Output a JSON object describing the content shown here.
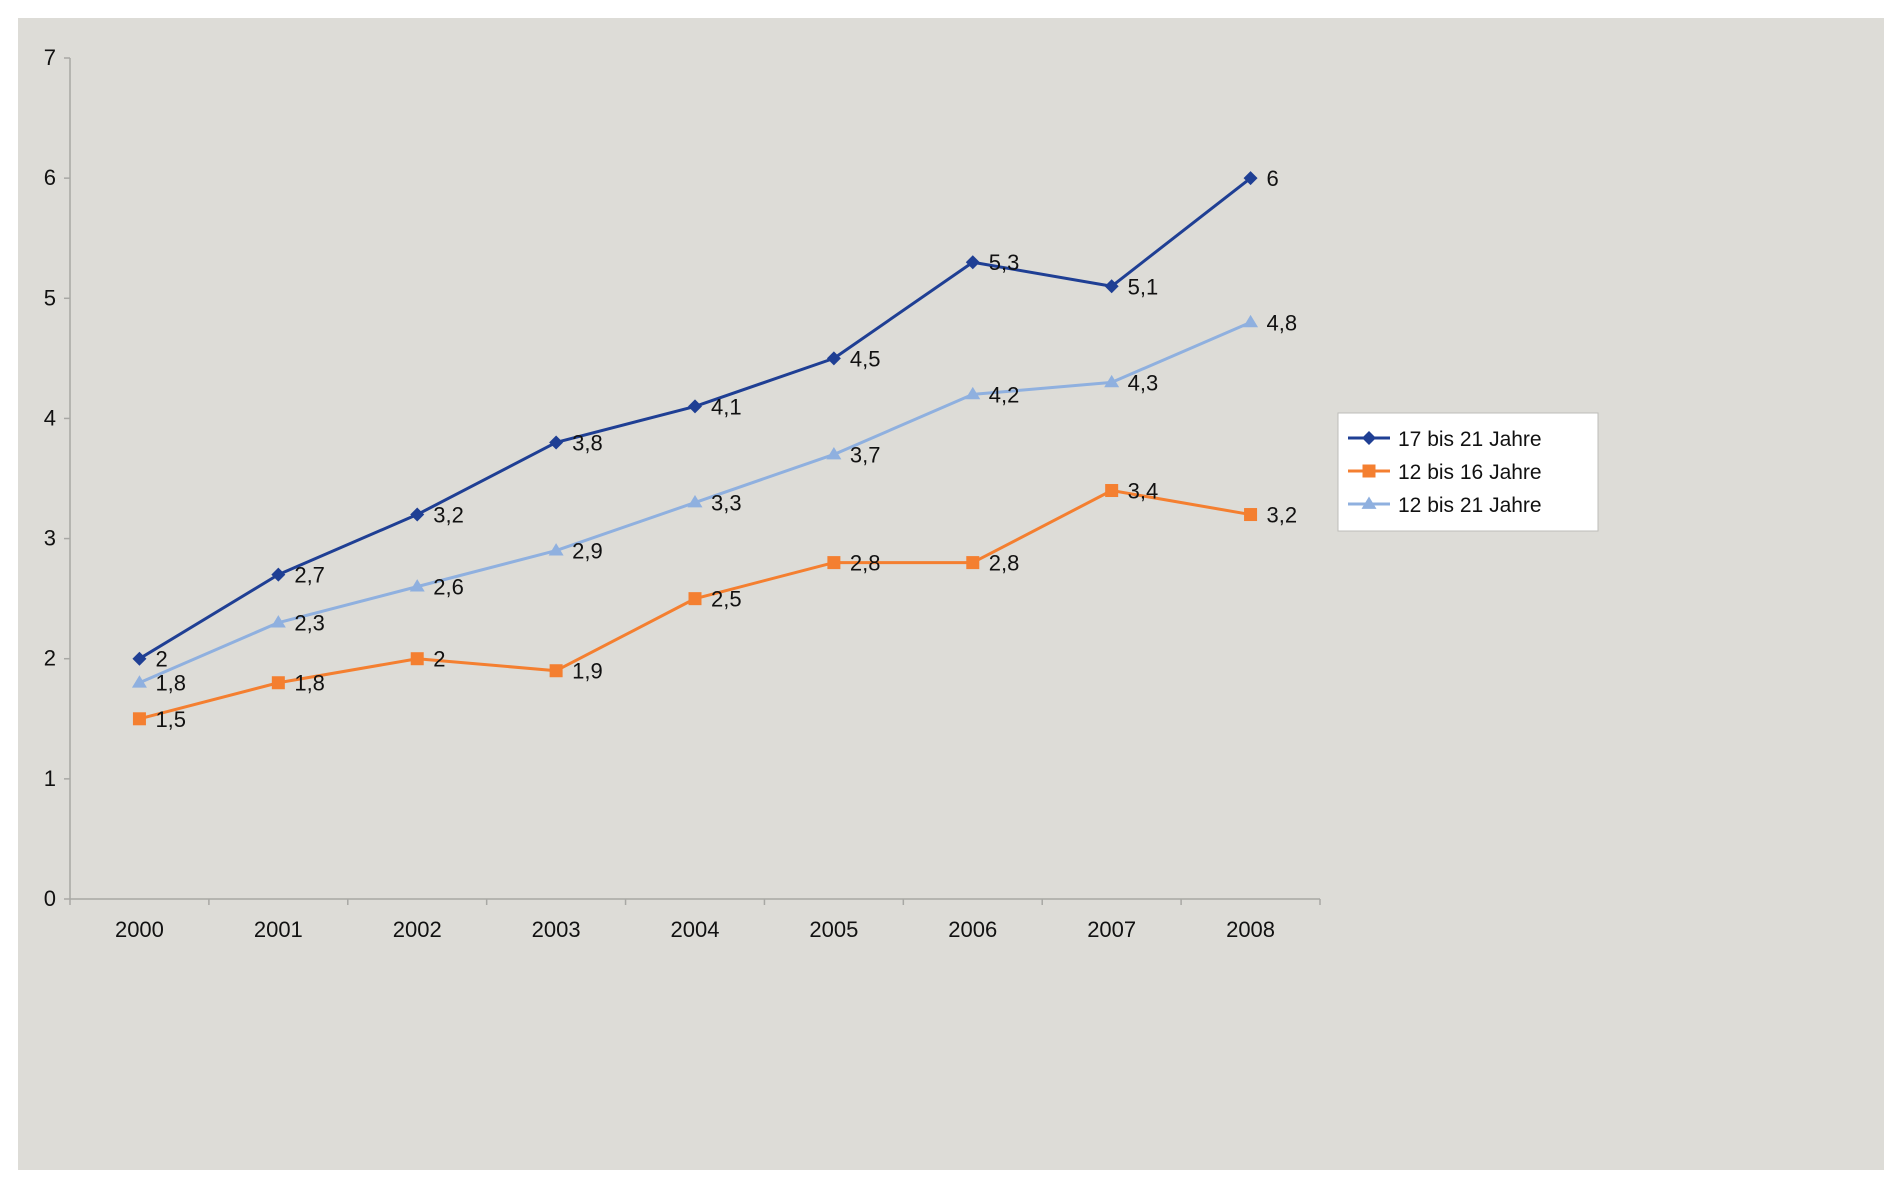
{
  "chart_data": {
    "type": "line",
    "categories": [
      "2000",
      "2001",
      "2002",
      "2003",
      "2004",
      "2005",
      "2006",
      "2007",
      "2008"
    ],
    "series": [
      {
        "name": "17 bis 21 Jahre",
        "color": "#1f3f94",
        "marker": "diamond",
        "values": [
          2,
          2.7,
          3.2,
          3.8,
          4.1,
          4.5,
          5.3,
          5.1,
          6
        ],
        "labels": [
          "2",
          "2,7",
          "3,2",
          "3,8",
          "4,1",
          "4,5",
          "5,3",
          "5,1",
          "6"
        ]
      },
      {
        "name": "12 bis 16 Jahre",
        "color": "#f47f30",
        "marker": "square",
        "values": [
          1.5,
          1.8,
          2,
          1.9,
          2.5,
          2.8,
          2.8,
          3.4,
          3.2
        ],
        "labels": [
          "1,5",
          "1,8",
          "2",
          "1,9",
          "2,5",
          "2,8",
          "2,8",
          "3,4",
          "3,2"
        ]
      },
      {
        "name": "12 bis 21 Jahre",
        "color": "#8fb0df",
        "marker": "triangle",
        "values": [
          1.8,
          2.3,
          2.6,
          2.9,
          3.3,
          3.7,
          4.2,
          4.3,
          4.8
        ],
        "labels": [
          "1,8",
          "2,3",
          "2,6",
          "2,9",
          "3,3",
          "3,7",
          "4,2",
          "4,3",
          "4,8"
        ]
      }
    ],
    "yticks": [
      "0",
      "1",
      "2",
      "3",
      "4",
      "5",
      "6",
      "7"
    ],
    "ylim": [
      0,
      7
    ],
    "title": "",
    "xlabel": "",
    "ylabel": "",
    "grid": false,
    "legend": "right",
    "background": "#dddcd7",
    "axis_color": "#a8a8a4"
  }
}
